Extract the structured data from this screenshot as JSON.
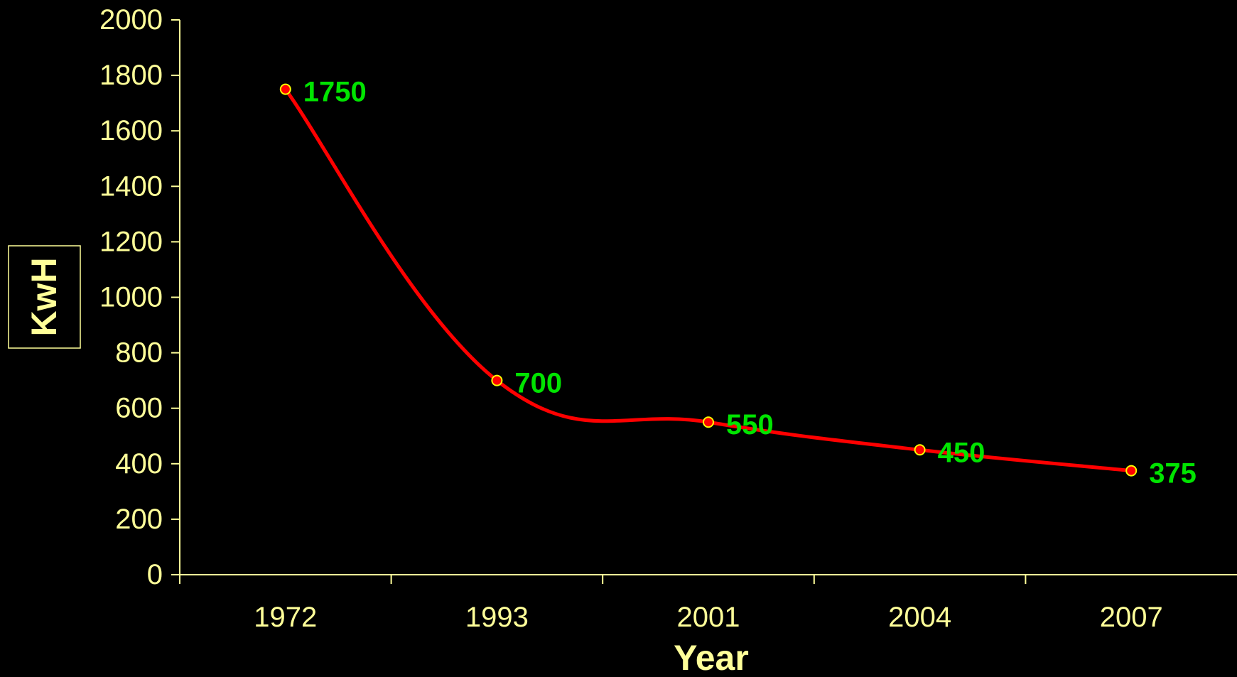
{
  "chart_data": {
    "type": "line",
    "title": "",
    "xlabel": "Year",
    "ylabel": "KwH",
    "categories": [
      "1972",
      "1993",
      "2001",
      "2004",
      "2007"
    ],
    "series": [
      {
        "values": [
          1750,
          700,
          550,
          450,
          375
        ]
      }
    ],
    "data_labels": [
      "1750",
      "700",
      "550",
      "450",
      "375"
    ],
    "ylim": [
      0,
      2000
    ],
    "yticks": [
      0,
      200,
      400,
      600,
      800,
      1000,
      1200,
      1400,
      1600,
      1800,
      2000
    ],
    "grid": false,
    "legend": "none",
    "smooth": true,
    "colors": {
      "background": "#000000",
      "axis": "#ffff99",
      "line": "#ff0000",
      "marker_fill": "#ff0000",
      "marker_stroke": "#ffff00",
      "data_label": "#00e400"
    }
  }
}
